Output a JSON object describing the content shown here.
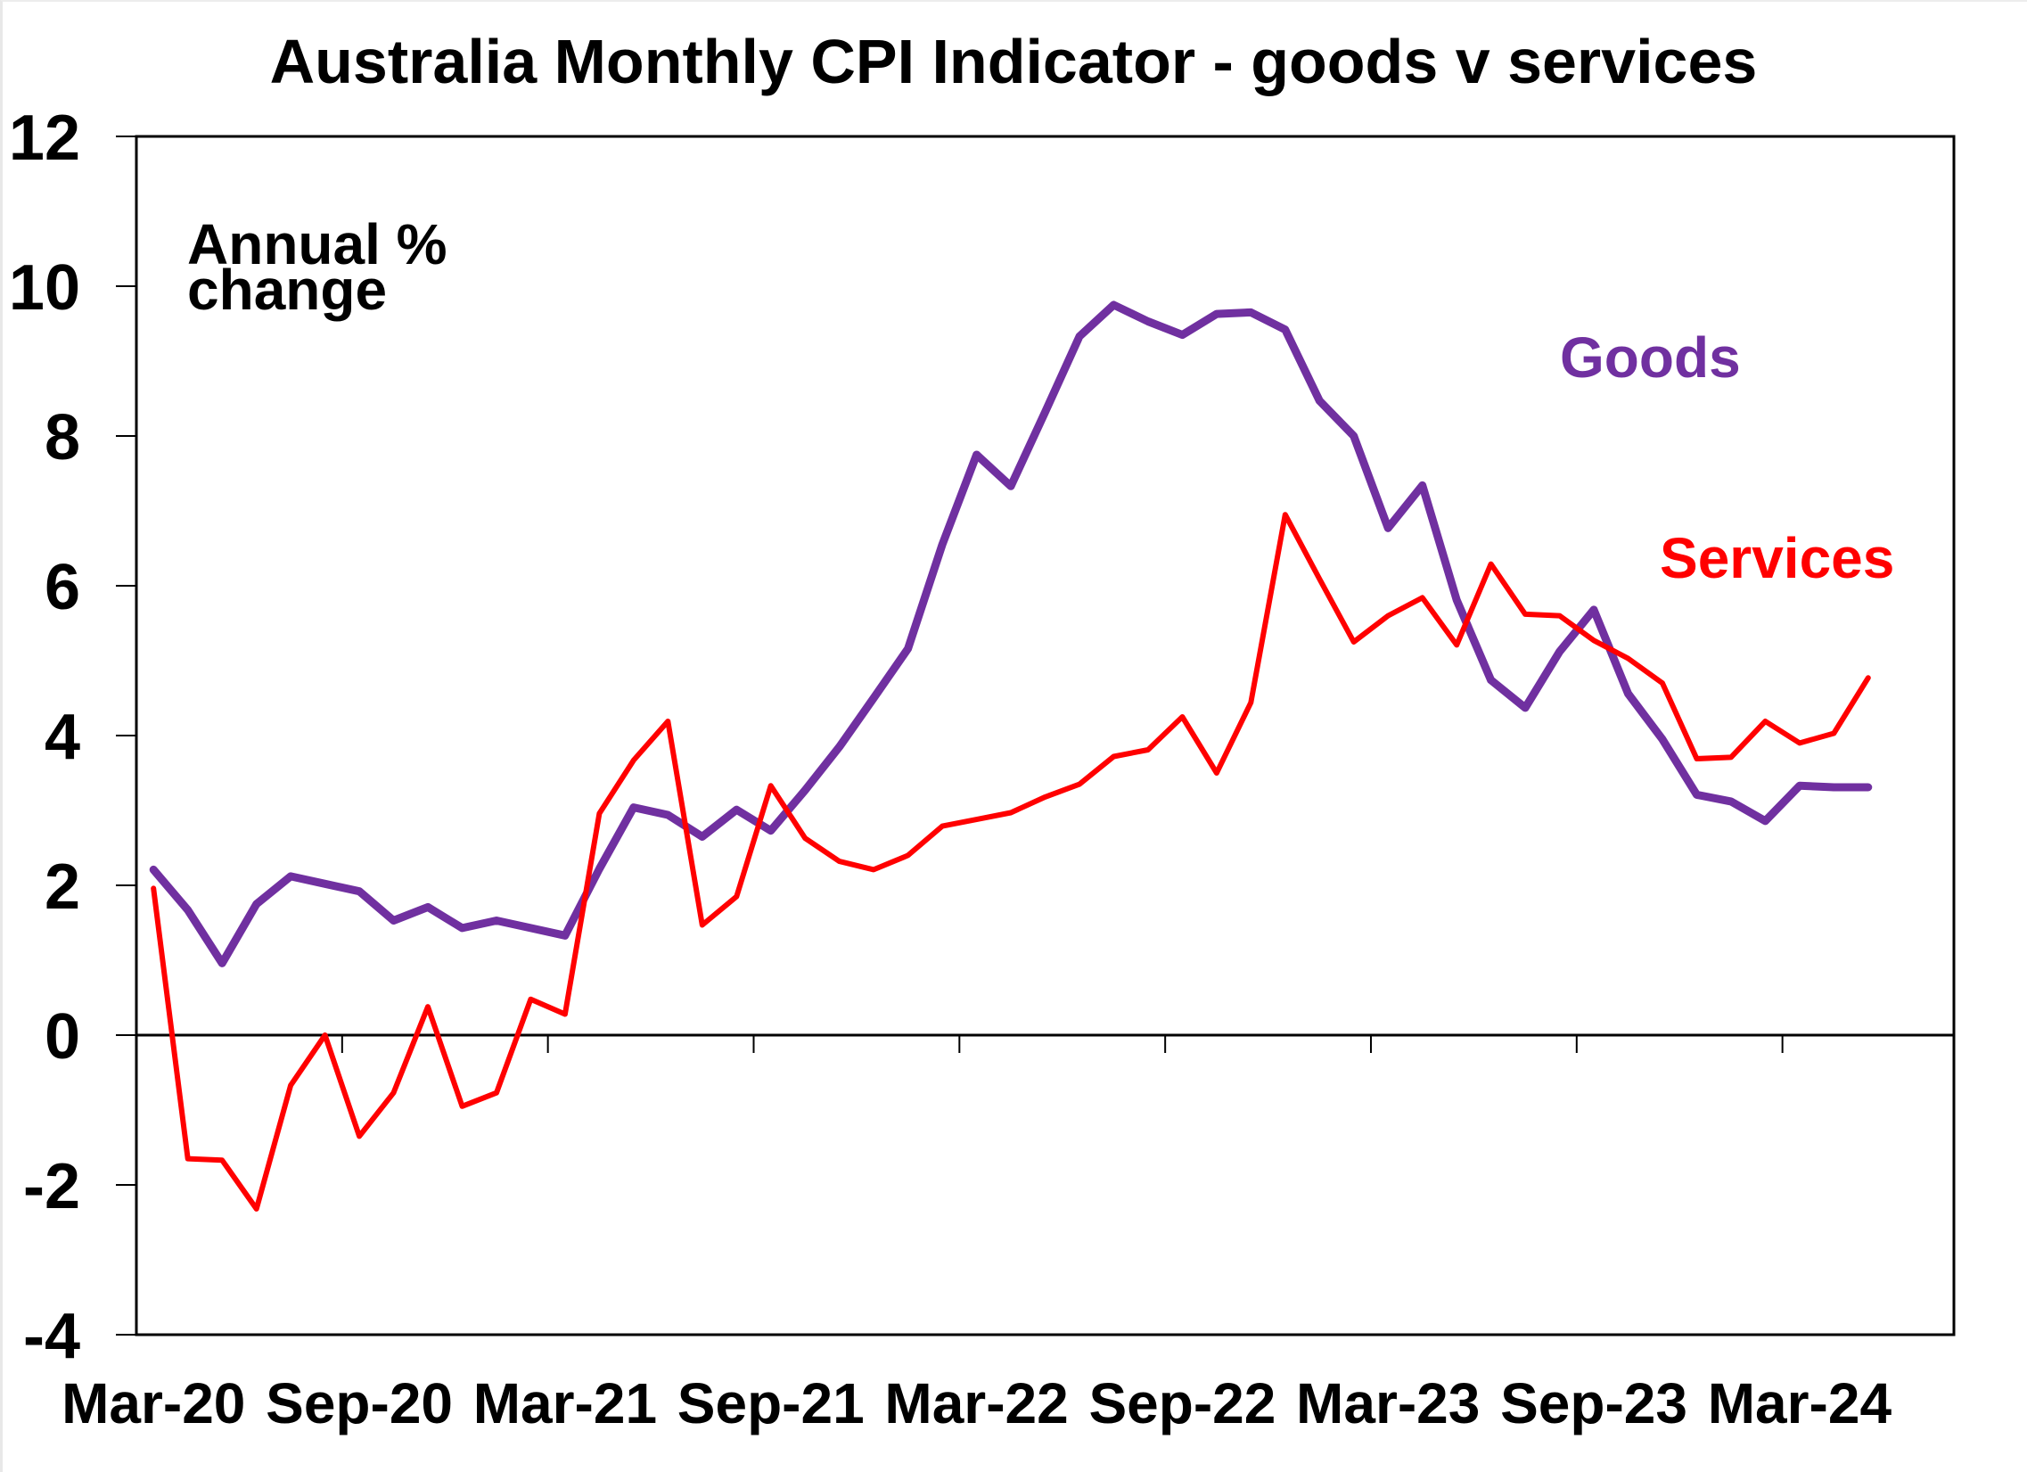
{
  "chart_data": {
    "type": "line",
    "title": "Australia Monthly CPI Indicator - goods v services",
    "xlabel": "",
    "ylabel": "",
    "annotation": [
      "Annual %",
      "change"
    ],
    "ylim": [
      -4,
      12
    ],
    "yticks": [
      -4,
      -2,
      0,
      2,
      4,
      6,
      8,
      10,
      12
    ],
    "grid": false,
    "legend": "inline-labels",
    "xtick_labels": [
      "Mar-20",
      "Sep-20",
      "Mar-21",
      "Sep-21",
      "Mar-22",
      "Sep-22",
      "Mar-23",
      "Sep-23",
      "Mar-24"
    ],
    "x": [
      "Mar-20",
      "Apr-20",
      "May-20",
      "Jun-20",
      "Jul-20",
      "Aug-20",
      "Sep-20",
      "Oct-20",
      "Nov-20",
      "Dec-20",
      "Jan-21",
      "Feb-21",
      "Mar-21",
      "Apr-21",
      "May-21",
      "Jun-21",
      "Jul-21",
      "Aug-21",
      "Sep-21",
      "Oct-21",
      "Nov-21",
      "Dec-21",
      "Jan-22",
      "Feb-22",
      "Mar-22",
      "Apr-22",
      "May-22",
      "Jun-22",
      "Jul-22",
      "Aug-22",
      "Sep-22",
      "Oct-22",
      "Nov-22",
      "Dec-22",
      "Jan-23",
      "Feb-23",
      "Mar-23",
      "Apr-23",
      "May-23",
      "Jun-23",
      "Jul-23",
      "Aug-23",
      "Sep-23",
      "Oct-23",
      "Nov-23",
      "Dec-23",
      "Jan-24",
      "Feb-24",
      "Mar-24",
      "Apr-24",
      "May-24"
    ],
    "series": [
      {
        "name": "Goods",
        "color": "#7030A0",
        "values": [
          2.21,
          1.67,
          0.96,
          1.75,
          2.12,
          2.02,
          1.92,
          1.53,
          1.71,
          1.43,
          1.53,
          1.43,
          1.33,
          2.22,
          3.04,
          2.94,
          2.65,
          3.01,
          2.73,
          3.27,
          3.85,
          4.5,
          5.16,
          6.55,
          7.75,
          7.33,
          8.32,
          9.33,
          9.75,
          9.53,
          9.35,
          9.63,
          9.65,
          9.42,
          8.47,
          8.0,
          6.77,
          7.34,
          5.81,
          4.74,
          4.37,
          5.12,
          5.68,
          4.56,
          3.95,
          3.21,
          3.12,
          2.86,
          3.33,
          3.31,
          3.31
        ]
      },
      {
        "name": "Services",
        "color": "#FF0000",
        "values": [
          1.96,
          -1.65,
          -1.67,
          -2.32,
          -0.67,
          0.0,
          -1.35,
          -0.77,
          0.38,
          -0.95,
          -0.77,
          0.48,
          0.28,
          2.96,
          3.67,
          4.19,
          1.47,
          1.85,
          3.33,
          2.63,
          2.32,
          2.21,
          2.4,
          2.79,
          2.88,
          2.97,
          3.18,
          3.35,
          3.72,
          3.81,
          4.25,
          3.5,
          4.44,
          6.95,
          6.09,
          5.25,
          5.6,
          5.84,
          5.21,
          6.29,
          5.62,
          5.6,
          5.27,
          5.03,
          4.7,
          3.69,
          3.71,
          4.19,
          3.9,
          4.03,
          4.77
        ]
      }
    ]
  }
}
